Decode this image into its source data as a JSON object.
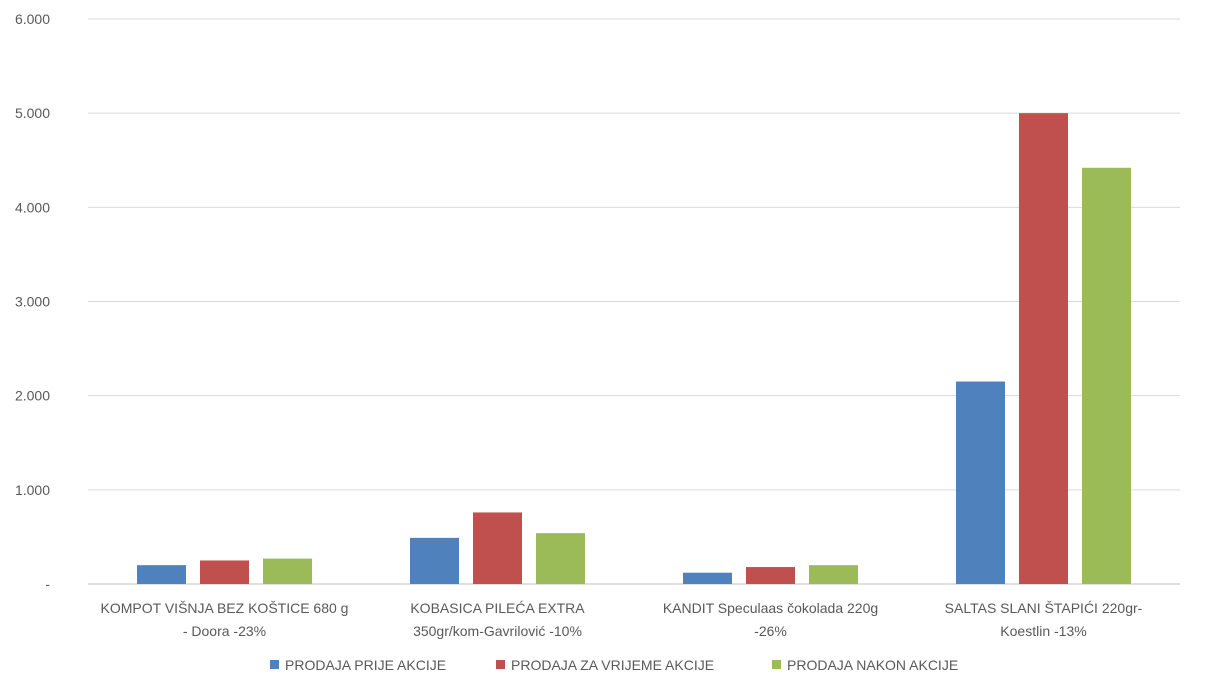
{
  "chart_data": {
    "type": "bar",
    "title": "",
    "xlabel": "",
    "ylabel": "",
    "ylim": [
      0,
      6000
    ],
    "ytick_labels": [
      "-",
      "1.000",
      "2.000",
      "3.000",
      "4.000",
      "5.000",
      "6.000"
    ],
    "ytick_values": [
      0,
      1000,
      2000,
      3000,
      4000,
      5000,
      6000
    ],
    "grid": true,
    "legend_position": "bottom",
    "categories": [
      [
        "KOMPOT VIŠNJA BEZ KOŠTICE 680 g",
        "- Doora    -23%"
      ],
      [
        "KOBASICA PILEĆA EXTRA",
        "350gr/kom-Gavrilović   -10%"
      ],
      [
        "KANDIT Speculaas čokolada 220g",
        "-26%"
      ],
      [
        "SALTAS SLANI ŠTAPIĆI 220gr-",
        "Koestlin   -13%"
      ]
    ],
    "series": [
      {
        "name": "PRODAJA PRIJE AKCIJE",
        "color": "#4f81bd",
        "values": [
          200,
          490,
          120,
          2150
        ]
      },
      {
        "name": "PRODAJA ZA VRIJEME AKCIJE",
        "color": "#c0504d",
        "values": [
          250,
          760,
          180,
          5000
        ]
      },
      {
        "name": "PRODAJA NAKON AKCIJE",
        "color": "#9bbb59",
        "values": [
          270,
          540,
          200,
          4420
        ]
      }
    ]
  }
}
